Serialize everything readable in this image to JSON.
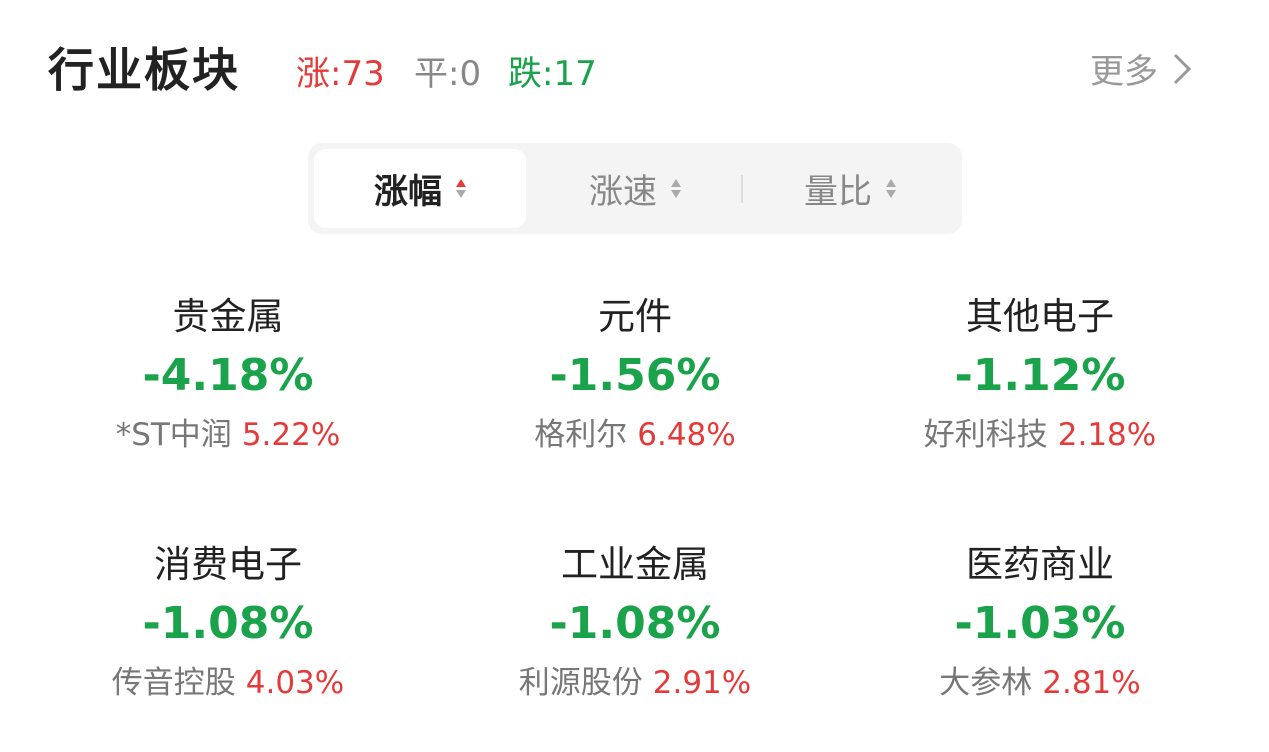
{
  "header": {
    "title": "行业板块",
    "up": "涨:73",
    "flat": "平:0",
    "down": "跌:17",
    "more": "更多",
    "colors": {
      "up": "#e43a3a",
      "down": "#1aa34a",
      "flat": "#888888"
    }
  },
  "tabs": [
    {
      "label": "涨幅",
      "active": true,
      "sort": "desc"
    },
    {
      "label": "涨速"
    },
    {
      "label": "量比"
    }
  ],
  "sectors": [
    {
      "name": "贵金属",
      "change": "-4.18%",
      "leader": "*ST中润",
      "leader_change": "5.22%"
    },
    {
      "name": "元件",
      "change": "-1.56%",
      "leader": "格利尔",
      "leader_change": "6.48%"
    },
    {
      "name": "其他电子",
      "change": "-1.12%",
      "leader": "好利科技",
      "leader_change": "2.18%"
    },
    {
      "name": "消费电子",
      "change": "-1.08%",
      "leader": "传音控股",
      "leader_change": "4.03%"
    },
    {
      "name": "工业金属",
      "change": "-1.08%",
      "leader": "利源股份",
      "leader_change": "2.91%"
    },
    {
      "name": "医药商业",
      "change": "-1.03%",
      "leader": "大参林",
      "leader_change": "2.81%"
    }
  ]
}
